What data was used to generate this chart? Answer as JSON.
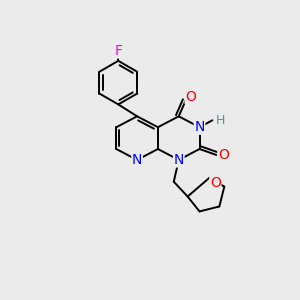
{
  "bg_color": "#ebebeb",
  "bond_color": "#000000",
  "atom_colors": {
    "F": "#ee00ee",
    "O": "#ff0000",
    "N": "#0000ff",
    "H": "#449999",
    "C": "#000000"
  },
  "line_width": 1.4,
  "font_size": 9,
  "figsize": [
    3.0,
    3.0
  ],
  "dpi": 100
}
